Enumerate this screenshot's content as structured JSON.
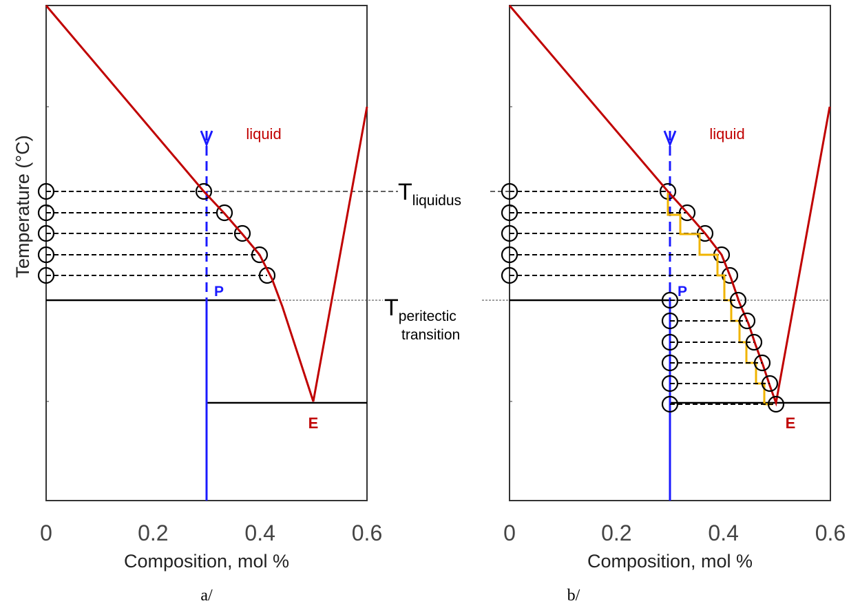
{
  "panels": [
    {
      "x_ticks": [
        "0",
        "0.2",
        "0.4",
        "0.6"
      ],
      "x_label": "Composition, mol %",
      "region_label": "liquid",
      "point_p": "P",
      "point_e": "E",
      "caption": "a/"
    },
    {
      "x_ticks": [
        "0",
        "0.2",
        "0.4",
        "0.6"
      ],
      "x_label": "Composition, mol %",
      "region_label": "liquid",
      "point_p": "P",
      "point_e": "E",
      "caption": "b/"
    }
  ],
  "y_label": "Temperature (°C)",
  "t_liquidus": {
    "main": "T",
    "sub": "liquidus"
  },
  "t_peritectic": {
    "main": "T",
    "sub": "peritectic",
    "line2": "transition"
  }
}
